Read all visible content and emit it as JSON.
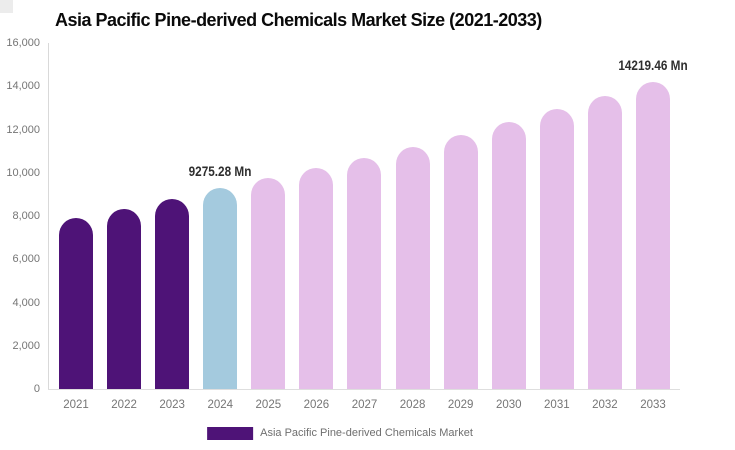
{
  "title": "Asia Pacific Pine-derived Chemicals Market Size (2021-2033)",
  "legend": {
    "label": "Asia Pacific Pine-derived Chemicals Market",
    "swatch_color": "#4e1377"
  },
  "colors": {
    "historical": "#4e1377",
    "base_year": "#a4cade",
    "forecast": "#e5bfe9",
    "axis_line": "#d9d9d9",
    "tick_text": "#757575",
    "annotation_text": "#2e2e2e",
    "legend_text": "#6f6f6f",
    "title_text": "#0a0a0a"
  },
  "chart_data": {
    "type": "bar",
    "title": "Asia Pacific Pine-derived Chemicals Market Size (2021-2033)",
    "categories": [
      "2021",
      "2022",
      "2023",
      "2024",
      "2025",
      "2026",
      "2027",
      "2028",
      "2029",
      "2030",
      "2031",
      "2032",
      "2033"
    ],
    "values": [
      7920,
      8330,
      8790,
      9275.28,
      9740,
      10200,
      10690,
      11210,
      11760,
      12330,
      12930,
      13560,
      14219.46
    ],
    "value_unit": "Mn",
    "bar_color_keys": [
      "historical",
      "historical",
      "historical",
      "base_year",
      "forecast",
      "forecast",
      "forecast",
      "forecast",
      "forecast",
      "forecast",
      "forecast",
      "forecast",
      "forecast"
    ],
    "labeled_points": [
      {
        "category": "2024",
        "text": "9275.28 Mn"
      },
      {
        "category": "2033",
        "text": "14219.46 Mn"
      }
    ],
    "xlabel": "",
    "ylabel": "",
    "ylim": [
      0,
      16000
    ],
    "y_ticks": [
      "0",
      "2,000",
      "4,000",
      "6,000",
      "8,000",
      "10,000",
      "12,000",
      "14,000",
      "16,000"
    ],
    "y_tick_values": [
      0,
      2000,
      4000,
      6000,
      8000,
      10000,
      12000,
      14000,
      16000
    ],
    "grid": false,
    "legend_position": "bottom",
    "legend_entries": [
      "Asia Pacific Pine-derived Chemicals Market"
    ]
  }
}
